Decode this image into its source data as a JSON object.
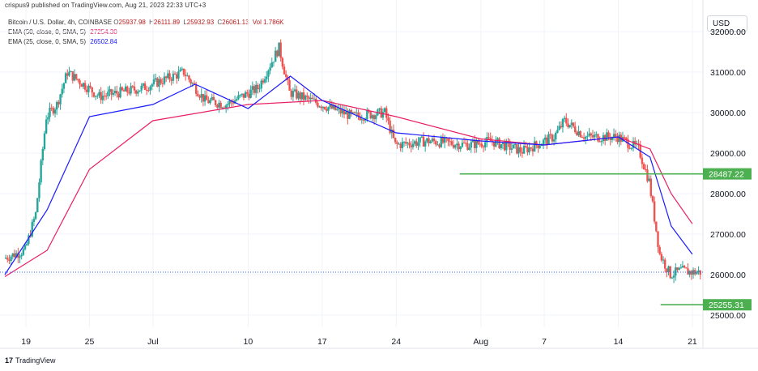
{
  "publisher": "crispus9 published on TradingView.com, Aug 21, 2023 22:33 UTC+3",
  "footer": {
    "logo_mark": "17",
    "logo_text": "TradingView"
  },
  "currency": "USD",
  "legend": {
    "symbol": "Bitcoin / U.S. Dollar, 4h, COINBASE",
    "ohlc": [
      {
        "key": "O",
        "value": "25937.98"
      },
      {
        "key": "H",
        "value": "26111.89"
      },
      {
        "key": "L",
        "value": "25932.93"
      },
      {
        "key": "C",
        "value": "26061.13"
      }
    ],
    "volume": "Vol 1.786K",
    "indicators": [
      {
        "label": "EMA (50, close, 0, SMA, 5)",
        "value": "27254.30",
        "color": "#e91e63"
      },
      {
        "label": "EMA (25, close, 0, SMA, 5)",
        "value": "26502.84",
        "color": "#1a1aff"
      }
    ]
  },
  "colors": {
    "up": "#26a69a",
    "down": "#ef5350",
    "ema50": "#e91e63",
    "ema25": "#1a1aff",
    "support": "#4caf50",
    "last_price": "#2962ff"
  },
  "chart_data": {
    "type": "candlestick",
    "symbol": "Bitcoin / U.S. Dollar",
    "interval": "4h",
    "exchange": "COINBASE",
    "currency": "USD",
    "ylim": [
      24700,
      32500
    ],
    "y_ticks": [
      25000,
      26000,
      27000,
      28000,
      29000,
      30000,
      31000,
      32000
    ],
    "y_tick_labels": [
      "25000.00",
      "26000.00",
      "27000.00",
      "28000.00",
      "29000.00",
      "30000.00",
      "31000.00",
      "32000.00"
    ],
    "x_start": "2023-06-17",
    "x_end": "2023-08-22",
    "x_tick_labels": [
      {
        "date": "2023-06-19",
        "label": "19"
      },
      {
        "date": "2023-06-25",
        "label": "25"
      },
      {
        "date": "2023-07-01",
        "label": "Jul"
      },
      {
        "date": "2023-07-10",
        "label": "10"
      },
      {
        "date": "2023-07-17",
        "label": "17"
      },
      {
        "date": "2023-07-24",
        "label": "24"
      },
      {
        "date": "2023-08-01",
        "label": "Aug"
      },
      {
        "date": "2023-08-07",
        "label": "7"
      },
      {
        "date": "2023-08-14",
        "label": "14"
      },
      {
        "date": "2023-08-21",
        "label": "21"
      }
    ],
    "price_keypoints": [
      {
        "date": "2023-06-17",
        "close": 26400
      },
      {
        "date": "2023-06-19",
        "close": 26600
      },
      {
        "date": "2023-06-20",
        "close": 27500
      },
      {
        "date": "2023-06-21",
        "close": 29900
      },
      {
        "date": "2023-06-22",
        "close": 30200
      },
      {
        "date": "2023-06-23",
        "close": 31000
      },
      {
        "date": "2023-06-26",
        "close": 30400
      },
      {
        "date": "2023-06-30",
        "close": 30600
      },
      {
        "date": "2023-07-04",
        "close": 31000
      },
      {
        "date": "2023-07-06",
        "close": 30300
      },
      {
        "date": "2023-07-08",
        "close": 30200
      },
      {
        "date": "2023-07-11",
        "close": 30600
      },
      {
        "date": "2023-07-13",
        "close": 31600
      },
      {
        "date": "2023-07-14",
        "close": 30500
      },
      {
        "date": "2023-07-17",
        "close": 30200
      },
      {
        "date": "2023-07-20",
        "close": 29900
      },
      {
        "date": "2023-07-23",
        "close": 30000
      },
      {
        "date": "2023-07-24",
        "close": 29200
      },
      {
        "date": "2023-07-27",
        "close": 29300
      },
      {
        "date": "2023-07-31",
        "close": 29200
      },
      {
        "date": "2023-08-02",
        "close": 29300
      },
      {
        "date": "2023-08-05",
        "close": 29050
      },
      {
        "date": "2023-08-08",
        "close": 29400
      },
      {
        "date": "2023-08-09",
        "close": 29800
      },
      {
        "date": "2023-08-11",
        "close": 29400
      },
      {
        "date": "2023-08-14",
        "close": 29400
      },
      {
        "date": "2023-08-16",
        "close": 29100
      },
      {
        "date": "2023-08-17",
        "close": 28300
      },
      {
        "date": "2023-08-18",
        "close": 26500
      },
      {
        "date": "2023-08-19",
        "close": 26000
      },
      {
        "date": "2023-08-20",
        "close": 26100
      },
      {
        "date": "2023-08-21",
        "close": 26061
      }
    ],
    "ema50": [
      {
        "date": "2023-06-17",
        "value": 25950
      },
      {
        "date": "2023-06-21",
        "value": 26600
      },
      {
        "date": "2023-06-25",
        "value": 28600
      },
      {
        "date": "2023-07-01",
        "value": 29800
      },
      {
        "date": "2023-07-10",
        "value": 30200
      },
      {
        "date": "2023-07-17",
        "value": 30300
      },
      {
        "date": "2023-07-24",
        "value": 29900
      },
      {
        "date": "2023-08-01",
        "value": 29350
      },
      {
        "date": "2023-08-07",
        "value": 29200
      },
      {
        "date": "2023-08-14",
        "value": 29400
      },
      {
        "date": "2023-08-17",
        "value": 29100
      },
      {
        "date": "2023-08-19",
        "value": 28000
      },
      {
        "date": "2023-08-21",
        "value": 27254
      }
    ],
    "ema25": [
      {
        "date": "2023-06-17",
        "value": 26000
      },
      {
        "date": "2023-06-21",
        "value": 27600
      },
      {
        "date": "2023-06-25",
        "value": 29900
      },
      {
        "date": "2023-07-01",
        "value": 30200
      },
      {
        "date": "2023-07-05",
        "value": 30700
      },
      {
        "date": "2023-07-10",
        "value": 30100
      },
      {
        "date": "2023-07-14",
        "value": 30900
      },
      {
        "date": "2023-07-17",
        "value": 30300
      },
      {
        "date": "2023-07-24",
        "value": 29500
      },
      {
        "date": "2023-08-01",
        "value": 29300
      },
      {
        "date": "2023-08-07",
        "value": 29200
      },
      {
        "date": "2023-08-14",
        "value": 29400
      },
      {
        "date": "2023-08-17",
        "value": 28900
      },
      {
        "date": "2023-08-19",
        "value": 27200
      },
      {
        "date": "2023-08-21",
        "value": 26503
      }
    ],
    "horizontal_lines": [
      {
        "name": "resistance",
        "value": 28487.22,
        "label": "28487.22",
        "from_date": "2023-07-30"
      },
      {
        "name": "support",
        "value": 25255.31,
        "label": "25255.31",
        "from_date": "2023-08-18"
      }
    ],
    "last_price": 26061.13,
    "grid": true
  }
}
